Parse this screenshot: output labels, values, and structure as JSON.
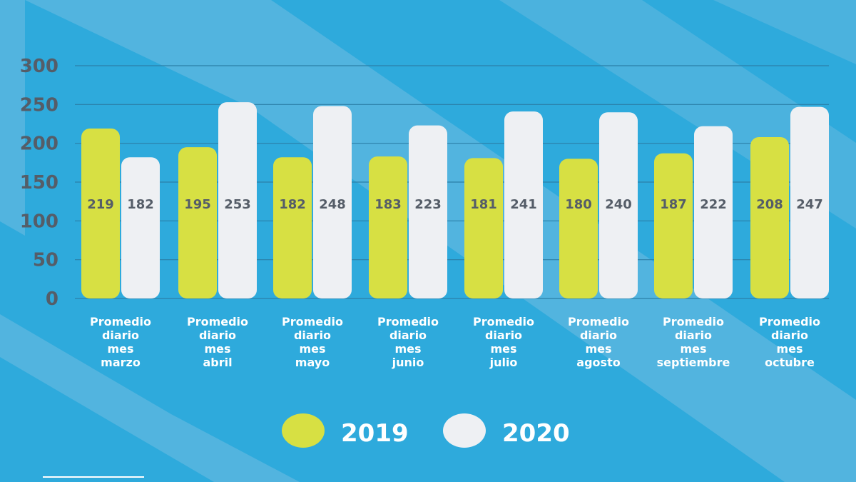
{
  "chart_data": {
    "type": "bar",
    "title": "",
    "xlabel": "",
    "ylabel": "",
    "ylim": [
      0,
      300
    ],
    "yticks": [
      0,
      50,
      100,
      150,
      200,
      250,
      300
    ],
    "grid": true,
    "categories": [
      [
        "Promedio",
        "diario",
        "mes",
        "marzo"
      ],
      [
        "Promedio",
        "diario",
        "mes",
        "abril"
      ],
      [
        "Promedio",
        "diario",
        "mes",
        "mayo"
      ],
      [
        "Promedio",
        "diario",
        "mes",
        "junio"
      ],
      [
        "Promedio",
        "diario",
        "mes",
        "julio"
      ],
      [
        "Promedio",
        "diario",
        "mes",
        "agosto"
      ],
      [
        "Promedio",
        "diario",
        "mes",
        "septiembre"
      ],
      [
        "Promedio",
        "diario",
        "mes",
        "octubre"
      ]
    ],
    "series": [
      {
        "name": "2019",
        "color": "#d7e043",
        "values": [
          219,
          195,
          182,
          183,
          181,
          180,
          187,
          208
        ]
      },
      {
        "name": "2020",
        "color": "#eef0f3",
        "values": [
          182,
          253,
          248,
          223,
          241,
          240,
          222,
          247
        ]
      }
    ],
    "legend_position": "bottom-center"
  },
  "colors": {
    "background": "#2eaadc",
    "band": "#5fb7e0",
    "grid": "#2b7fa8",
    "text": "#555d68"
  }
}
